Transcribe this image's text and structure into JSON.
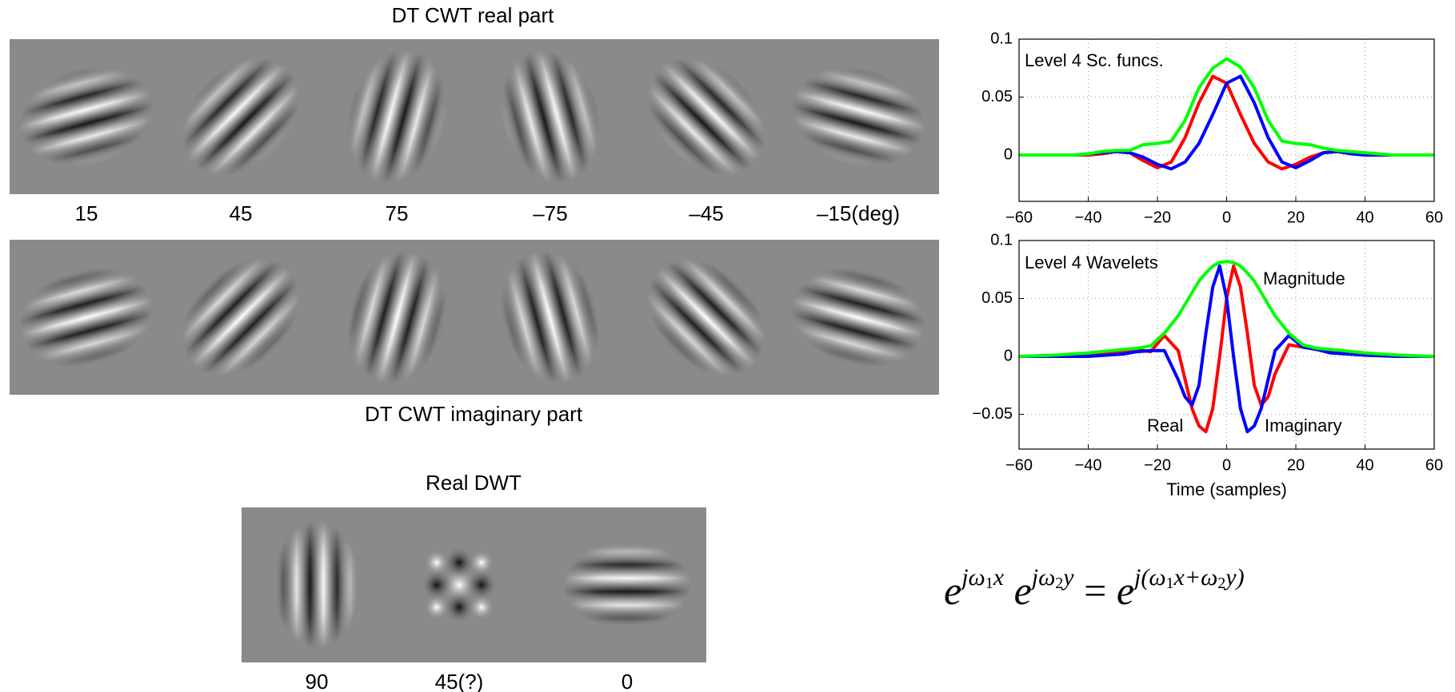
{
  "panels": {
    "real_title": "DT CWT real part",
    "imag_title": "DT CWT imaginary part",
    "orientation_labels": [
      "15",
      "45",
      "75",
      "–75",
      "–45",
      "–15(deg)"
    ],
    "dwt_title": "Real DWT",
    "dwt_labels": [
      "90",
      "45(?)",
      "0"
    ]
  },
  "equation": [
    "e",
    "jω",
    "1",
    "x",
    "e",
    "jω",
    "2",
    "y",
    "=",
    "e",
    "j(ω",
    "1",
    "x+ω",
    "2",
    "y)"
  ],
  "chart_data": [
    {
      "type": "line",
      "annotations": [
        "Level 4 Sc. funcs."
      ],
      "x": [
        -60,
        -56,
        -52,
        -48,
        -44,
        -40,
        -36,
        -32,
        -28,
        -24,
        -20,
        -16,
        -12,
        -8,
        -4,
        0,
        4,
        8,
        12,
        16,
        20,
        24,
        28,
        32,
        36,
        40,
        44,
        48,
        52,
        56,
        60
      ],
      "series": [
        {
          "color": "#ff0000",
          "values": [
            0,
            0,
            0,
            0,
            0,
            0,
            0.001,
            0.003,
            0.002,
            -0.005,
            -0.011,
            -0.006,
            0.015,
            0.045,
            0.068,
            0.062,
            0.035,
            0.01,
            -0.006,
            -0.012,
            -0.008,
            -0.002,
            0.002,
            0.003,
            0.002,
            0.001,
            0,
            0,
            0,
            0,
            0
          ]
        },
        {
          "color": "#0000ff",
          "values": [
            0,
            0,
            0,
            0,
            0,
            0.001,
            0.002,
            0.003,
            0.002,
            -0.002,
            -0.008,
            -0.012,
            -0.006,
            0.01,
            0.035,
            0.062,
            0.068,
            0.045,
            0.015,
            -0.006,
            -0.011,
            -0.005,
            0.002,
            0.003,
            0.001,
            0,
            0,
            0,
            0,
            0,
            0
          ]
        },
        {
          "color": "#00ff00",
          "values": [
            0,
            0,
            0,
            0,
            0,
            0.001,
            0.003,
            0.004,
            0.004,
            0.009,
            0.01,
            0.012,
            0.03,
            0.058,
            0.075,
            0.083,
            0.076,
            0.058,
            0.03,
            0.012,
            0.01,
            0.009,
            0.006,
            0.004,
            0.003,
            0.002,
            0.001,
            0,
            0,
            0,
            0
          ]
        }
      ],
      "xlim": [
        -60,
        60
      ],
      "ylim": [
        -0.04,
        0.1
      ],
      "xticks": [
        {
          "value": -60,
          "label": "−60"
        },
        {
          "value": -40,
          "label": "−40"
        },
        {
          "value": -20,
          "label": "−20"
        },
        0,
        20,
        40,
        60
      ],
      "yticks": [
        0,
        0.05,
        0.1
      ],
      "grid": true
    },
    {
      "type": "line",
      "annotations": [
        "Level 4 Wavelets"
      ],
      "xlabel": "Time (samples)",
      "x": [
        -60,
        -50,
        -40,
        -30,
        -26,
        -22,
        -18,
        -14,
        -12,
        -10,
        -8,
        -6,
        -4,
        -2,
        0,
        2,
        4,
        6,
        8,
        10,
        12,
        14,
        18,
        22,
        26,
        30,
        40,
        50,
        60
      ],
      "series": [
        {
          "name": "Real",
          "color": "#ff0000",
          "values": [
            0,
            0,
            0.001,
            0.004,
            0.006,
            0.004,
            0.018,
            0.005,
            -0.02,
            -0.045,
            -0.06,
            -0.065,
            -0.045,
            0,
            0.05,
            0.078,
            0.06,
            0.02,
            -0.025,
            -0.042,
            -0.035,
            -0.015,
            0.01,
            0.008,
            0.006,
            0.004,
            0.001,
            0,
            0
          ]
        },
        {
          "name": "Imaginary",
          "color": "#0000ff",
          "values": [
            0,
            0,
            0,
            0.002,
            0.004,
            0.005,
            0.005,
            -0.02,
            -0.035,
            -0.042,
            -0.025,
            0.02,
            0.06,
            0.078,
            0.05,
            0,
            -0.045,
            -0.065,
            -0.06,
            -0.045,
            -0.02,
            0.005,
            0.018,
            0.008,
            0.006,
            0.003,
            0.001,
            0,
            0
          ]
        },
        {
          "name": "Magnitude",
          "color": "#00ff00",
          "values": [
            0,
            0.001,
            0.003,
            0.006,
            0.007,
            0.009,
            0.02,
            0.035,
            0.045,
            0.055,
            0.065,
            0.072,
            0.078,
            0.081,
            0.082,
            0.081,
            0.078,
            0.072,
            0.065,
            0.055,
            0.045,
            0.035,
            0.02,
            0.01,
            0.007,
            0.006,
            0.003,
            0.001,
            0
          ]
        }
      ],
      "xlim": [
        -60,
        60
      ],
      "ylim": [
        -0.08,
        0.1
      ],
      "xticks": [
        {
          "value": -60,
          "label": "−60"
        },
        {
          "value": -40,
          "label": "−40"
        },
        {
          "value": -20,
          "label": "−20"
        },
        0,
        20,
        40,
        60
      ],
      "yticks": [
        {
          "value": -0.05,
          "label": "−0.05"
        },
        0,
        0.05,
        0.1
      ],
      "grid": true
    }
  ]
}
